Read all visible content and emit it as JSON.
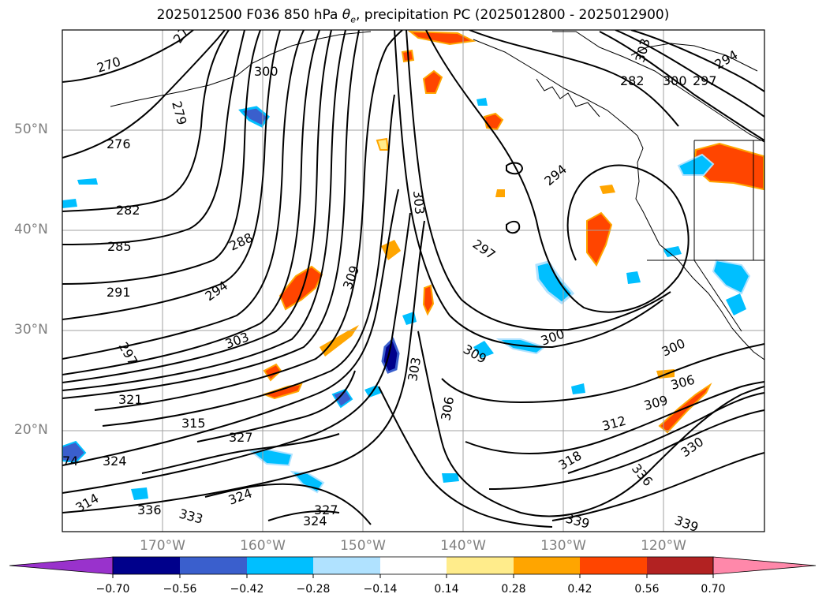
{
  "title": {
    "prefix": "2025012500 F036 850 hPa ",
    "symbol": "θ",
    "subscript": "e",
    "suffix": ", precipitation PC (2025012800 - 2025012900)"
  },
  "lat_labels": [
    "50°N",
    "40°N",
    "30°N",
    "20°N"
  ],
  "lon_labels": [
    "170°W",
    "160°W",
    "150°W",
    "140°W",
    "130°W",
    "120°W"
  ],
  "contour_labels": [
    "270",
    "276",
    "279",
    "282",
    "285",
    "288",
    "291",
    "294",
    "297",
    "300",
    "303",
    "306",
    "309",
    "312",
    "315",
    "318",
    "321",
    "324",
    "327",
    "330",
    "333",
    "336",
    "339",
    "27",
    "74",
    "314"
  ],
  "colorbar": {
    "colors": [
      "#9932cc",
      "#00008b",
      "#3a5fcd",
      "#00bfff",
      "#b0e2ff",
      "#ffffff",
      "#ffec8b",
      "#ffa500",
      "#ff4500",
      "#b22222",
      "#ff88aa"
    ],
    "tick_labels": [
      "−0.70",
      "−0.56",
      "−0.42",
      "−0.28",
      "−0.14",
      "0.14",
      "0.28",
      "0.42",
      "0.56",
      "0.70"
    ]
  }
}
